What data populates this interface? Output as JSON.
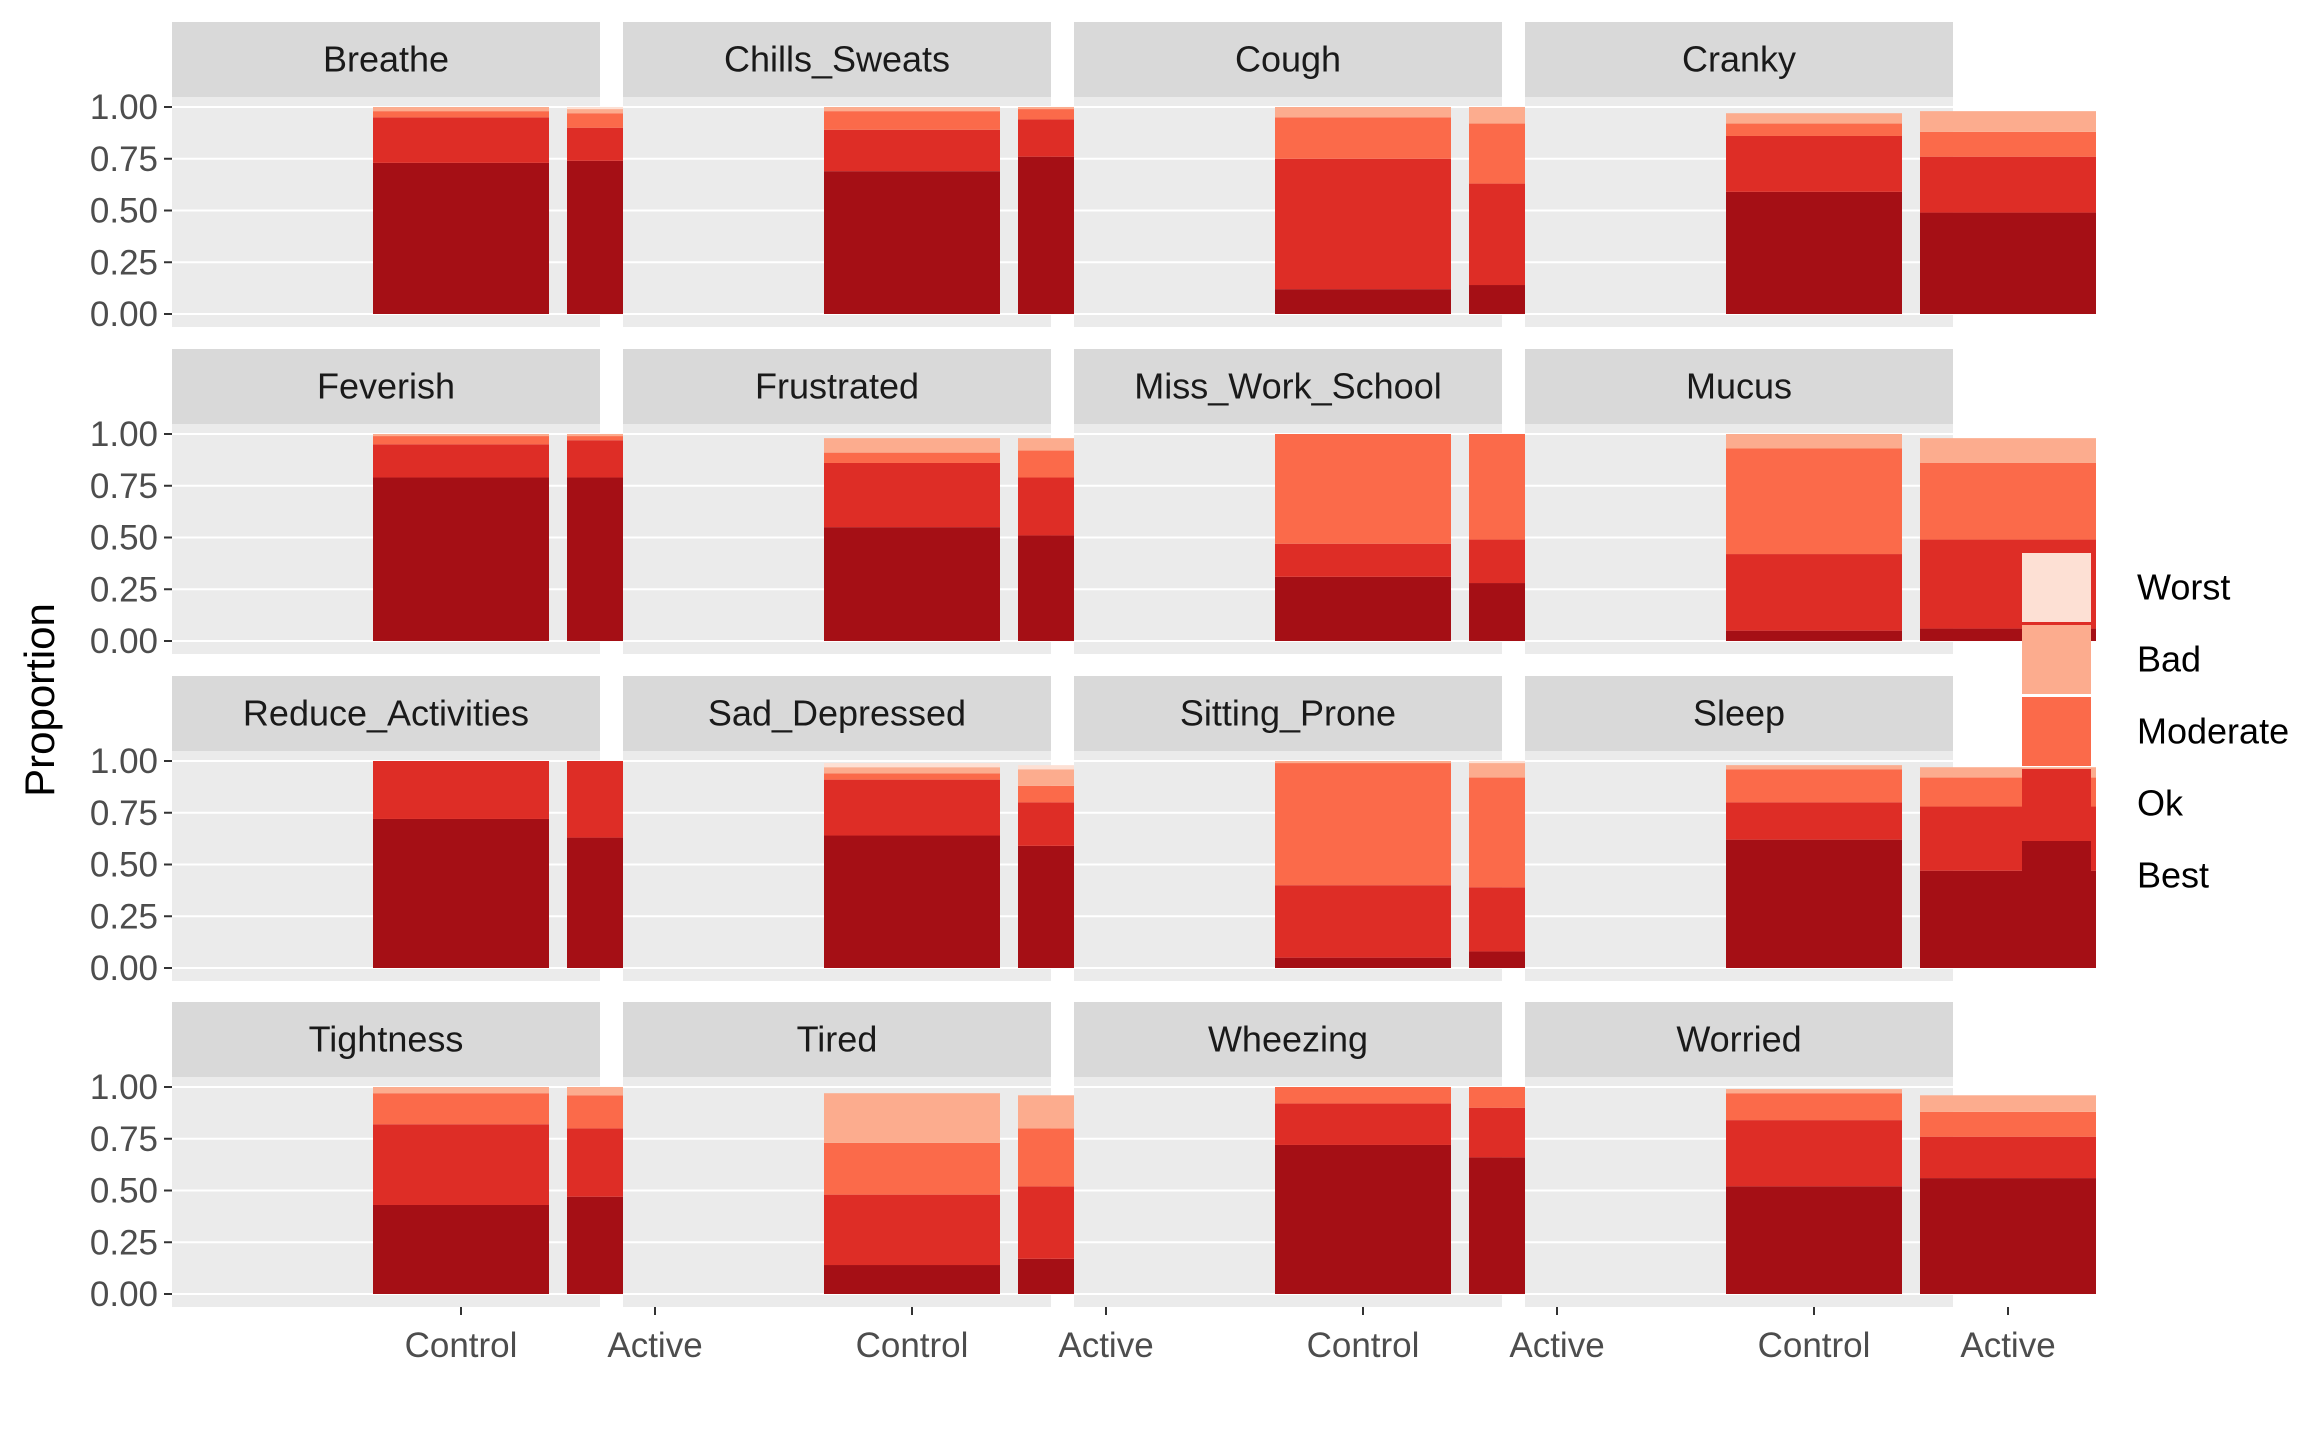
{
  "chart_data": {
    "type": "bar",
    "stacked": true,
    "facet_layout": "4x4",
    "ylabel": "Proportion",
    "xlabel": "",
    "ylim": [
      0,
      1
    ],
    "y_ticks": [
      "0.00",
      "0.25",
      "0.50",
      "0.75",
      "1.00"
    ],
    "categories": [
      "Control",
      "Active"
    ],
    "legend": {
      "position": "right",
      "entries": [
        {
          "label": "Worst",
          "color": "#fde0d4"
        },
        {
          "label": "Bad",
          "color": "#fcac8e"
        },
        {
          "label": "Moderate",
          "color": "#fb6a4a"
        },
        {
          "label": "Ok",
          "color": "#de2d26"
        },
        {
          "label": "Best",
          "color": "#a50f15"
        }
      ]
    },
    "stack_order": [
      "Best",
      "Ok",
      "Moderate",
      "Bad",
      "Worst"
    ],
    "panels": [
      {
        "title": "Breathe",
        "bars": [
          {
            "group": "Control",
            "values": [
              0.73,
              0.22,
              0.03,
              0.02,
              0.0
            ]
          },
          {
            "group": "Active",
            "values": [
              0.74,
              0.16,
              0.07,
              0.02,
              0.01
            ]
          }
        ]
      },
      {
        "title": "Chills_Sweats",
        "bars": [
          {
            "group": "Control",
            "values": [
              0.69,
              0.2,
              0.09,
              0.02,
              0.0
            ]
          },
          {
            "group": "Active",
            "values": [
              0.76,
              0.18,
              0.05,
              0.01,
              0.0
            ]
          }
        ]
      },
      {
        "title": "Cough",
        "bars": [
          {
            "group": "Control",
            "values": [
              0.12,
              0.63,
              0.2,
              0.05,
              0.0
            ]
          },
          {
            "group": "Active",
            "values": [
              0.14,
              0.49,
              0.29,
              0.08,
              0.0
            ]
          }
        ]
      },
      {
        "title": "Cranky",
        "bars": [
          {
            "group": "Control",
            "values": [
              0.59,
              0.27,
              0.06,
              0.05,
              0.0
            ]
          },
          {
            "group": "Active",
            "values": [
              0.49,
              0.27,
              0.12,
              0.1,
              0.0
            ]
          }
        ]
      },
      {
        "title": "Feverish",
        "bars": [
          {
            "group": "Control",
            "values": [
              0.79,
              0.16,
              0.04,
              0.01,
              0.0
            ]
          },
          {
            "group": "Active",
            "values": [
              0.79,
              0.18,
              0.02,
              0.01,
              0.0
            ]
          }
        ]
      },
      {
        "title": "Frustrated",
        "bars": [
          {
            "group": "Control",
            "values": [
              0.55,
              0.31,
              0.05,
              0.07,
              0.0
            ]
          },
          {
            "group": "Active",
            "values": [
              0.51,
              0.28,
              0.13,
              0.06,
              0.0
            ]
          }
        ]
      },
      {
        "title": "Miss_Work_School",
        "bars": [
          {
            "group": "Control",
            "values": [
              0.31,
              0.16,
              0.53,
              0.0,
              0.0
            ]
          },
          {
            "group": "Active",
            "values": [
              0.28,
              0.21,
              0.51,
              0.0,
              0.0
            ]
          }
        ]
      },
      {
        "title": "Mucus",
        "bars": [
          {
            "group": "Control",
            "values": [
              0.05,
              0.37,
              0.51,
              0.07,
              0.0
            ]
          },
          {
            "group": "Active",
            "values": [
              0.06,
              0.43,
              0.37,
              0.12,
              0.0
            ]
          }
        ]
      },
      {
        "title": "Reduce_Activities",
        "bars": [
          {
            "group": "Control",
            "values": [
              0.72,
              0.28,
              0.0,
              0.0,
              0.0
            ]
          },
          {
            "group": "Active",
            "values": [
              0.63,
              0.37,
              0.0,
              0.0,
              0.0
            ]
          }
        ]
      },
      {
        "title": "Sad_Depressed",
        "bars": [
          {
            "group": "Control",
            "values": [
              0.64,
              0.27,
              0.03,
              0.03,
              0.02
            ]
          },
          {
            "group": "Active",
            "values": [
              0.59,
              0.21,
              0.08,
              0.08,
              0.02
            ]
          }
        ]
      },
      {
        "title": "Sitting_Prone",
        "bars": [
          {
            "group": "Control",
            "values": [
              0.05,
              0.35,
              0.59,
              0.01,
              0.0
            ]
          },
          {
            "group": "Active",
            "values": [
              0.08,
              0.31,
              0.53,
              0.07,
              0.01
            ]
          }
        ]
      },
      {
        "title": "Sleep",
        "bars": [
          {
            "group": "Control",
            "values": [
              0.62,
              0.18,
              0.16,
              0.02,
              0.0
            ]
          },
          {
            "group": "Active",
            "values": [
              0.47,
              0.31,
              0.14,
              0.05,
              0.0
            ]
          }
        ]
      },
      {
        "title": "Tightness",
        "bars": [
          {
            "group": "Control",
            "values": [
              0.43,
              0.39,
              0.15,
              0.03,
              0.0
            ]
          },
          {
            "group": "Active",
            "values": [
              0.47,
              0.33,
              0.16,
              0.04,
              0.0
            ]
          }
        ]
      },
      {
        "title": "Tired",
        "bars": [
          {
            "group": "Control",
            "values": [
              0.14,
              0.34,
              0.25,
              0.24,
              0.0
            ]
          },
          {
            "group": "Active",
            "values": [
              0.17,
              0.35,
              0.28,
              0.16,
              0.0
            ]
          }
        ]
      },
      {
        "title": "Wheezing",
        "bars": [
          {
            "group": "Control",
            "values": [
              0.72,
              0.2,
              0.08,
              0.0,
              0.0
            ]
          },
          {
            "group": "Active",
            "values": [
              0.66,
              0.24,
              0.1,
              0.0,
              0.0
            ]
          }
        ]
      },
      {
        "title": "Worried",
        "bars": [
          {
            "group": "Control",
            "values": [
              0.52,
              0.32,
              0.13,
              0.02,
              0.0
            ]
          },
          {
            "group": "Active",
            "values": [
              0.56,
              0.2,
              0.12,
              0.08,
              0.0
            ]
          }
        ]
      }
    ]
  }
}
